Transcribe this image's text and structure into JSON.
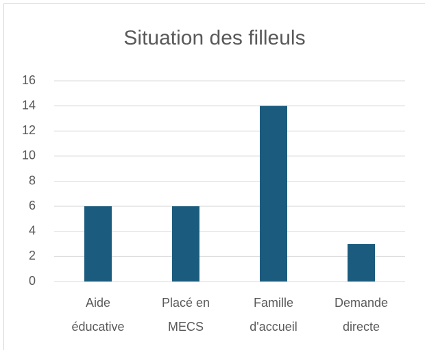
{
  "chart_data": {
    "type": "bar",
    "title": "Situation des filleuls",
    "categories": [
      "Aide\néducative",
      "Placé en\nMECS",
      "Famille\nd'accueil",
      "Demande\ndirecte"
    ],
    "values": [
      6,
      6,
      14,
      3
    ],
    "color": "#1b5c7e",
    "ylim": [
      0,
      16
    ],
    "yticks": [
      0,
      2,
      4,
      6,
      8,
      10,
      12,
      14,
      16
    ],
    "grid": true
  }
}
